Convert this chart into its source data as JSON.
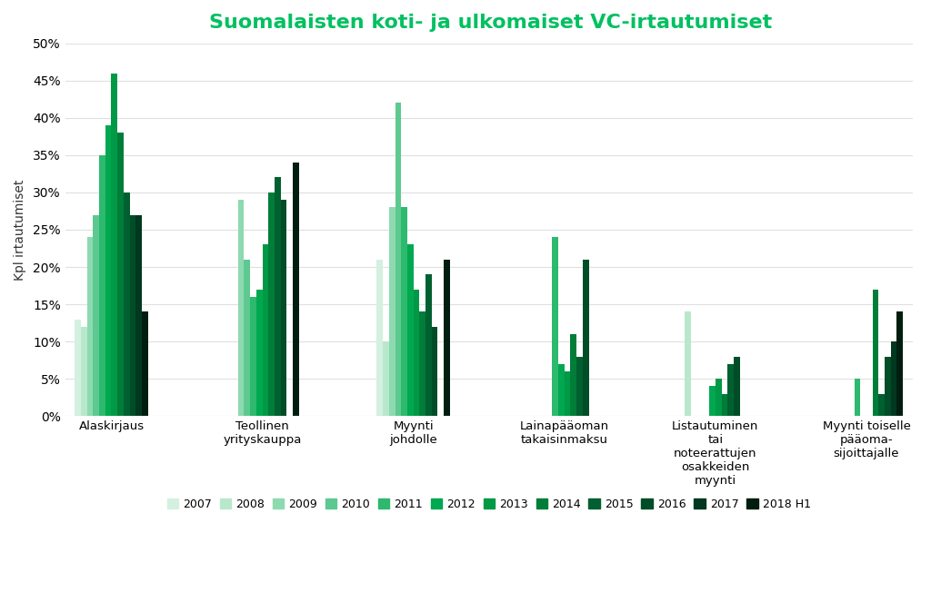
{
  "title": "Suomalaisten koti- ja ulkomaiset VC-irtautumiset",
  "ylabel": "Kpl irtautumiset",
  "years": [
    "2007",
    "2008",
    "2009",
    "2010",
    "2011",
    "2012",
    "2013",
    "2014",
    "2015",
    "2016",
    "2017",
    "2018 H1"
  ],
  "colors": [
    "#d4f0e0",
    "#b8e8cc",
    "#8ddab0",
    "#5dc990",
    "#2db96e",
    "#00a850",
    "#009945",
    "#007d38",
    "#006030",
    "#004d28",
    "#003820",
    "#001e10"
  ],
  "categories": [
    "Alaskirjaus",
    "Teollinen\nyrityskauppa",
    "Myynti\njohdolle",
    "Lainapääoman\ntakaisinmaksu",
    "Listautuminen\ntai\nnoteerattujen\nosakkeiden\nmyynti",
    "Myynti toiselle\npääoma-\nsijoittajalle"
  ],
  "data": {
    "Alaskirjaus": [
      0.13,
      0.12,
      0.24,
      0.27,
      0.35,
      0.39,
      0.46,
      0.38,
      0.3,
      0.27,
      0.27,
      0.14
    ],
    "Teollinen\nyrityskauppa": [
      0.0,
      0.0,
      0.29,
      0.21,
      0.16,
      0.17,
      0.23,
      0.3,
      0.32,
      0.29,
      0.0,
      0.34
    ],
    "Myynti\njohdolle": [
      0.21,
      0.1,
      0.28,
      0.42,
      0.28,
      0.23,
      0.17,
      0.14,
      0.19,
      0.12,
      0.0,
      0.21
    ],
    "Lainapääoman\ntakaisinmaksu": [
      0.0,
      0.0,
      0.0,
      0.0,
      0.24,
      0.07,
      0.06,
      0.11,
      0.08,
      0.21,
      0.0,
      0.0
    ],
    "Listautuminen\ntai\nnoteerattujen\nosakkeiden\nmyynti": [
      0.0,
      0.14,
      0.0,
      0.0,
      0.0,
      0.04,
      0.05,
      0.03,
      0.07,
      0.08,
      0.0,
      0.0
    ],
    "Myynti toiselle\npääoma-\nsijoittajalle": [
      0.0,
      0.0,
      0.0,
      0.0,
      0.05,
      0.0,
      0.0,
      0.17,
      0.03,
      0.08,
      0.1,
      0.14
    ]
  },
  "ylim": [
    0,
    0.5
  ],
  "yticks": [
    0.0,
    0.05,
    0.1,
    0.15,
    0.2,
    0.25,
    0.3,
    0.35,
    0.4,
    0.45,
    0.5
  ],
  "background_color": "#ffffff",
  "grid_color": "#e0e0e0",
  "title_color": "#00c060",
  "title_fontsize": 16,
  "legend_fontsize": 9,
  "axis_label_fontsize": 10
}
